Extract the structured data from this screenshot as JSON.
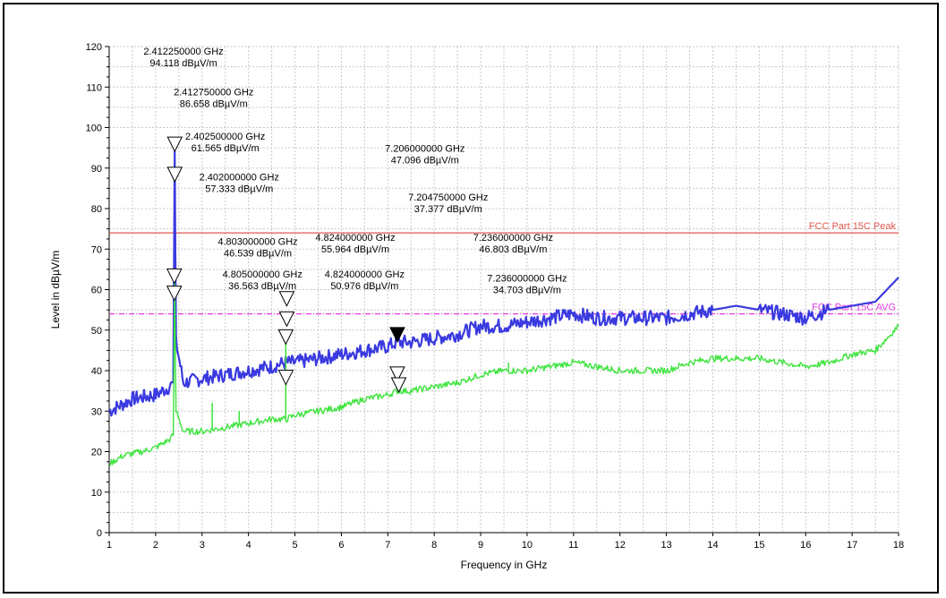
{
  "chart_data": {
    "type": "line",
    "title": "",
    "xlabel": "Frequency in GHz",
    "ylabel": "Level in dBµV/m",
    "xlim": [
      1,
      18
    ],
    "ylim": [
      0,
      120
    ],
    "x_ticks": [
      "1",
      "2",
      "3",
      "4",
      "5",
      "6",
      "7",
      "8",
      "9",
      "10",
      "11",
      "12",
      "13",
      "14",
      "15",
      "16",
      "17",
      "18"
    ],
    "y_ticks": [
      "0",
      "10",
      "20",
      "30",
      "40",
      "50",
      "60",
      "70",
      "80",
      "90",
      "100",
      "110",
      "120"
    ],
    "grid": true,
    "limits": [
      {
        "name": "FCC Part 15C Peak",
        "value": 74,
        "color": "#e0584f"
      },
      {
        "name": "FCC Part 15C AVG",
        "value": 54,
        "color": "#e23be2"
      }
    ],
    "series": [
      {
        "color": "#3a3ae0",
        "x": [
          1.0,
          1.5,
          2.0,
          2.3,
          2.38,
          2.41,
          2.44,
          2.6,
          3.0,
          3.5,
          4.0,
          4.5,
          4.8,
          5.0,
          5.5,
          6.0,
          6.5,
          7.0,
          7.2,
          7.5,
          8.0,
          8.5,
          9.0,
          9.5,
          10.0,
          10.5,
          11.0,
          11.5,
          12.0,
          12.5,
          13.0,
          13.5,
          14.0,
          14.5,
          15.0,
          15.5,
          16.0,
          16.5,
          17.0,
          17.5,
          18.0
        ],
        "values": [
          30,
          33,
          34,
          36,
          37,
          94.118,
          47,
          37,
          38,
          39,
          40,
          41,
          42,
          42,
          43,
          44,
          45,
          46,
          47,
          47,
          48,
          49,
          51,
          51,
          52,
          53,
          54,
          53,
          53,
          53,
          53,
          54,
          55,
          56,
          55,
          54,
          53,
          55,
          56,
          57,
          63
        ]
      },
      {
        "color": "#3de43d",
        "x": [
          1.0,
          1.3,
          1.7,
          2.0,
          2.3,
          2.38,
          2.41,
          2.44,
          2.6,
          3.0,
          3.5,
          4.0,
          4.5,
          4.82,
          5.0,
          5.5,
          6.0,
          6.5,
          7.0,
          7.2,
          7.5,
          8.0,
          8.5,
          9.0,
          9.5,
          10.0,
          10.5,
          11.0,
          11.5,
          12.0,
          12.5,
          13.0,
          13.5,
          14.0,
          14.5,
          15.0,
          15.5,
          16.0,
          16.5,
          17.0,
          17.5,
          18.0
        ],
        "values": [
          17,
          19,
          20,
          21,
          23,
          24,
          61.565,
          30,
          25,
          25,
          26,
          27,
          28,
          28,
          29,
          30,
          31,
          33,
          34,
          35,
          35,
          36,
          37,
          39,
          40,
          40,
          41,
          42,
          41,
          40,
          40,
          40,
          42,
          43,
          43,
          43,
          42,
          41,
          42,
          44,
          45,
          51
        ]
      }
    ],
    "spikes": [
      {
        "series": 1,
        "x": 3.22,
        "value": 32
      },
      {
        "series": 1,
        "x": 3.8,
        "value": 30
      },
      {
        "series": 1,
        "x": 4.803,
        "value": 46.539
      },
      {
        "series": 1,
        "x": 9.6,
        "value": 42
      }
    ],
    "markers": [
      {
        "x": 2.41225,
        "y": 94.118,
        "filled": false
      },
      {
        "x": 2.41275,
        "y": 86.658,
        "filled": false
      },
      {
        "x": 2.4025,
        "y": 61.565,
        "filled": false
      },
      {
        "x": 2.402,
        "y": 57.333,
        "filled": false
      },
      {
        "x": 4.824,
        "y": 55.964,
        "filled": false
      },
      {
        "x": 4.824,
        "y": 50.976,
        "filled": false
      },
      {
        "x": 4.803,
        "y": 46.539,
        "filled": false
      },
      {
        "x": 4.805,
        "y": 36.563,
        "filled": false
      },
      {
        "x": 7.206,
        "y": 47.096,
        "filled": true
      },
      {
        "x": 7.20475,
        "y": 37.377,
        "filled": false
      },
      {
        "x": 7.236,
        "y": 34.703,
        "filled": false
      }
    ],
    "annotations": [
      {
        "freq": "2.412250000 GHz",
        "level": "94.118 dBµV/m",
        "x": 2.6,
        "y": 118
      },
      {
        "freq": "2.412750000 GHz",
        "level": "86.658 dBµV/m",
        "x": 3.25,
        "y": 108
      },
      {
        "freq": "2.402500000 GHz",
        "level": "61.565 dBµV/m",
        "x": 3.5,
        "y": 97
      },
      {
        "freq": "2.402000000 GHz",
        "level": "57.333 dBµV/m",
        "x": 3.8,
        "y": 87
      },
      {
        "freq": "7.206000000 GHz",
        "level": "47.096 dBµV/m",
        "x": 7.8,
        "y": 94
      },
      {
        "freq": "7.204750000 GHz",
        "level": "37.377 dBµV/m",
        "x": 8.3,
        "y": 82
      },
      {
        "freq": "4.803000000 GHz",
        "level": "46.539 dBµV/m",
        "x": 4.2,
        "y": 71
      },
      {
        "freq": "4.824000000 GHz",
        "level": "55.964 dBµV/m",
        "x": 6.3,
        "y": 72
      },
      {
        "freq": "7.236000000 GHz",
        "level": "46.803 dBµV/m",
        "x": 9.7,
        "y": 72
      },
      {
        "freq": "4.805000000 GHz",
        "level": "36.563 dBµV/m",
        "x": 4.3,
        "y": 63
      },
      {
        "freq": "4.824000000 GHz",
        "level": "50.976 dBµV/m",
        "x": 6.5,
        "y": 63
      },
      {
        "freq": "7.236000000 GHz",
        "level": "34.703 dBµV/m",
        "x": 10.0,
        "y": 62
      }
    ]
  }
}
